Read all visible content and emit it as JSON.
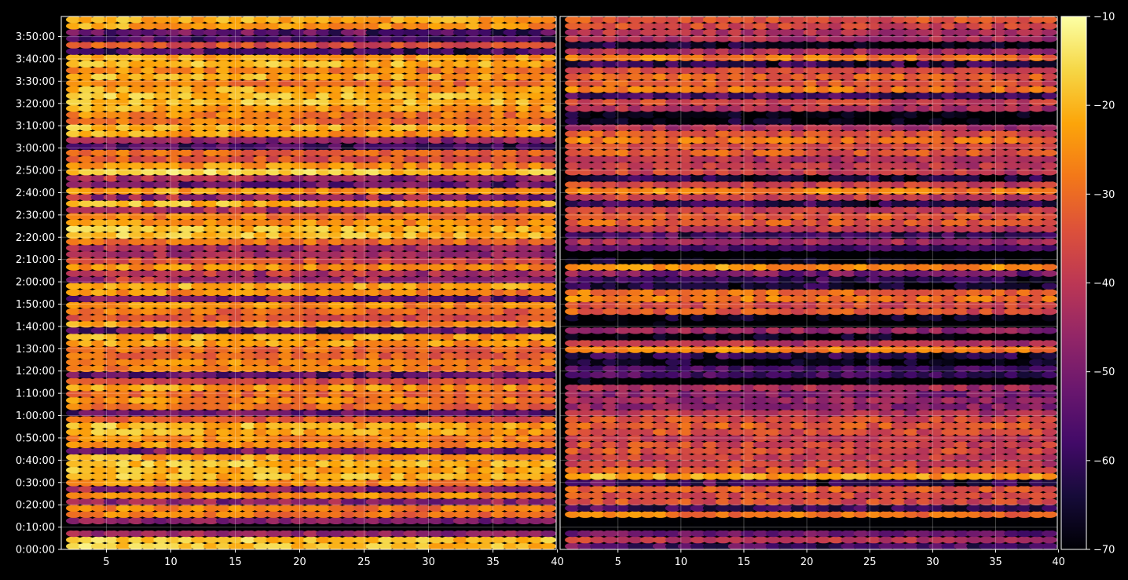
{
  "chart_data": {
    "type": "heatmap",
    "title": "",
    "xlabel": "",
    "ylabel": "",
    "grid": true,
    "panels": [
      {
        "name": "",
        "xlim": [
          1.5,
          39.9
        ],
        "x_ticks": [
          5,
          10,
          15,
          20,
          25,
          30,
          35,
          40
        ],
        "x_tick_labels": [
          "5",
          "10",
          "15",
          "20",
          "25",
          "30",
          "35",
          "40"
        ]
      },
      {
        "name": "",
        "xlim": [
          0.4,
          39.9
        ],
        "x_ticks": [
          5,
          10,
          15,
          20,
          25,
          30,
          35,
          40
        ],
        "x_tick_labels": [
          "5",
          "10",
          "15",
          "20",
          "25",
          "30",
          "35",
          "40"
        ]
      }
    ],
    "ylim_seconds": [
      0,
      14340
    ],
    "y_ticks_seconds": [
      0,
      600,
      1200,
      1800,
      2400,
      3000,
      3600,
      4200,
      4800,
      5400,
      6000,
      6600,
      7200,
      7800,
      8400,
      9000,
      9600,
      10200,
      10800,
      11400,
      12000,
      12600,
      13200,
      13800
    ],
    "y_tick_labels": [
      "0:00:00",
      "0:10:00",
      "0:20:00",
      "0:30:00",
      "0:40:00",
      "0:50:00",
      "1:00:00",
      "1:10:00",
      "1:20:00",
      "1:30:00",
      "1:40:00",
      "1:50:00",
      "2:00:00",
      "2:10:00",
      "2:20:00",
      "2:30:00",
      "2:40:00",
      "2:50:00",
      "3:00:00",
      "3:10:00",
      "3:20:00",
      "3:30:00",
      "3:40:00",
      "3:50:00"
    ],
    "colorbar": {
      "colormap": "inferno",
      "range": [
        -70,
        -10
      ],
      "ticks": [
        -70,
        -60,
        -50,
        -40,
        -30,
        -20,
        -10
      ],
      "tick_labels": [
        "−70",
        "−60",
        "−50",
        "−40",
        "−30",
        "−20",
        "−10"
      ]
    },
    "row_levels": [
      {
        "t": 0,
        "left": -18,
        "right": -28,
        "right_bias_from_x": 15,
        "note": ""
      },
      {
        "t": 300,
        "left": -22,
        "right": -32
      },
      {
        "t": 600,
        "left": -65,
        "right": -68
      },
      {
        "t": 1000,
        "left": -20,
        "right": -26
      },
      {
        "t": 1500,
        "left": -22,
        "right": -28
      },
      {
        "t": 1900,
        "left": -21,
        "right": -27
      },
      {
        "t": 2100,
        "left": -17,
        "right": -26
      },
      {
        "t": 2400,
        "left": -24,
        "right": -32
      },
      {
        "t": 2800,
        "left": -30,
        "right": -40
      },
      {
        "t": 3100,
        "left": -26,
        "right": -36
      },
      {
        "t": 3600,
        "left": -24,
        "right": -34
      },
      {
        "t": 4000,
        "left": -30,
        "right": -46
      },
      {
        "t": 4400,
        "left": -26,
        "right": -44
      },
      {
        "t": 4800,
        "left": -30,
        "right": -52
      },
      {
        "t": 5400,
        "left": -26,
        "right": -30
      },
      {
        "t": 5800,
        "left": -28,
        "right": -44
      },
      {
        "t": 6000,
        "left": -26,
        "right": -46
      },
      {
        "t": 6600,
        "left": -24,
        "right": -34
      },
      {
        "t": 7000,
        "left": -18,
        "right": -30
      },
      {
        "t": 7600,
        "left": -18,
        "right": -22
      },
      {
        "t": 8000,
        "left": -55,
        "right": -62
      },
      {
        "t": 8400,
        "left": -24,
        "right": -34
      },
      {
        "t": 8800,
        "left": -20,
        "right": -30
      },
      {
        "t": 9400,
        "left": -18,
        "right": -30
      },
      {
        "t": 10000,
        "left": -20,
        "right": -32
      },
      {
        "t": 10600,
        "left": -28,
        "right": -40
      },
      {
        "t": 11000,
        "left": -20,
        "right": -30
      },
      {
        "t": 11600,
        "left": -30,
        "right": -46
      },
      {
        "t": 12100,
        "left": -22,
        "right": -32
      },
      {
        "t": 12600,
        "left": -24,
        "right": -34
      },
      {
        "t": 13000,
        "left": -24,
        "right": -30
      },
      {
        "t": 13600,
        "left": -28,
        "right": -40
      },
      {
        "t": 14000,
        "left": -22,
        "right": -32
      },
      {
        "t": 14340,
        "left": -20,
        "right": -30
      }
    ]
  }
}
